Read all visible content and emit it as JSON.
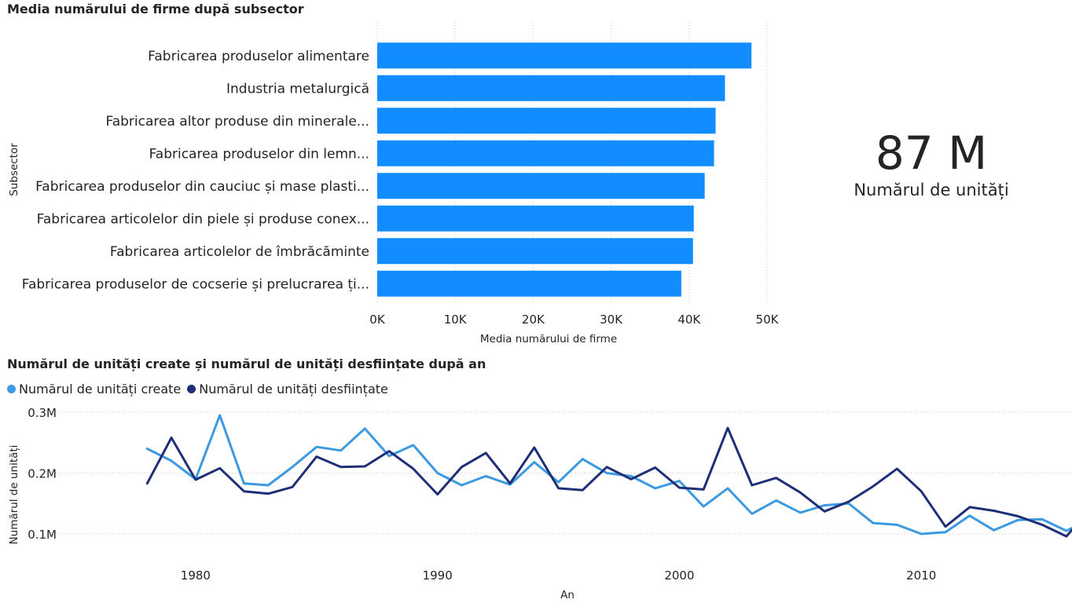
{
  "bar_title": "Media numărului de firme după subsector",
  "kpi": {
    "value": "87 M",
    "label": "Numărul de unități"
  },
  "line_title": "Numărul de unități create și numărul de unități desființate după an",
  "colors": {
    "bar": "#118dff",
    "created": "#3b9ae1",
    "closed": "#1f2e78"
  },
  "chart_data": [
    {
      "type": "bar",
      "orientation": "horizontal",
      "title": "Media numărului de firme după subsector",
      "xlabel": "Media numărului de firme",
      "ylabel": "Subsector",
      "categories": [
        "Fabricarea produselor alimentare",
        "Industria metalurgică",
        "Fabricarea altor produse din minerale...",
        "Fabricarea produselor din lemn...",
        "Fabricarea produselor din cauciuc și mase plasti...",
        "Fabricarea articolelor din piele și produse conex...",
        "Fabricarea articolelor de îmbrăcăminte",
        "Fabricarea produselor de cocserie și prelucrarea ți..."
      ],
      "values": [
        48000,
        44600,
        43400,
        43200,
        42000,
        40600,
        40500,
        39000
      ],
      "xlim": [
        0,
        50000
      ],
      "xticks": [
        "0K",
        "10K",
        "20K",
        "30K",
        "40K",
        "50K"
      ],
      "grid": true
    },
    {
      "type": "line",
      "title": "Numărul de unități create și numărul de unități desființate după an",
      "xlabel": "An",
      "ylabel": "Numărul de unități",
      "xlim": [
        1975,
        2020
      ],
      "xticks": [
        "1980",
        "1990",
        "2000",
        "2010",
        "2020"
      ],
      "ylim": [
        0.075,
        0.31
      ],
      "yticks": [
        "0.1M",
        "0.2M",
        "0.3M"
      ],
      "legend": "top-left",
      "x": [
        1978,
        1979,
        1980,
        1981,
        1982,
        1983,
        1984,
        1985,
        1986,
        1987,
        1988,
        1989,
        1990,
        1991,
        1992,
        1993,
        1994,
        1995,
        1996,
        1997,
        1998,
        1999,
        2000,
        2001,
        2002,
        2003,
        2004,
        2005,
        2006,
        2007,
        2008,
        2009,
        2010,
        2011,
        2012,
        2013,
        2014,
        2015,
        2016,
        2017,
        2018
      ],
      "series": [
        {
          "name": "Numărul de unități create",
          "values": [
            0.24,
            0.22,
            0.19,
            0.295,
            0.183,
            0.18,
            0.21,
            0.243,
            0.237,
            0.273,
            0.228,
            0.246,
            0.2,
            0.18,
            0.195,
            0.181,
            0.218,
            0.185,
            0.223,
            0.2,
            0.195,
            0.175,
            0.187,
            0.145,
            0.175,
            0.133,
            0.155,
            0.135,
            0.147,
            0.15,
            0.118,
            0.115,
            0.1,
            0.103,
            0.13,
            0.106,
            0.123,
            0.124,
            0.105,
            0.125,
            0.13
          ]
        },
        {
          "name": "Numărul de unități desființate",
          "values": [
            0.183,
            0.258,
            0.189,
            0.208,
            0.17,
            0.166,
            0.177,
            0.227,
            0.21,
            0.211,
            0.236,
            0.207,
            0.165,
            0.21,
            0.233,
            0.183,
            0.242,
            0.175,
            0.172,
            0.21,
            0.19,
            0.209,
            0.176,
            0.173,
            0.274,
            0.18,
            0.192,
            0.168,
            0.137,
            0.153,
            0.178,
            0.207,
            0.17,
            0.112,
            0.144,
            0.138,
            0.129,
            0.115,
            0.096,
            0.142,
            0.158
          ]
        }
      ]
    }
  ]
}
